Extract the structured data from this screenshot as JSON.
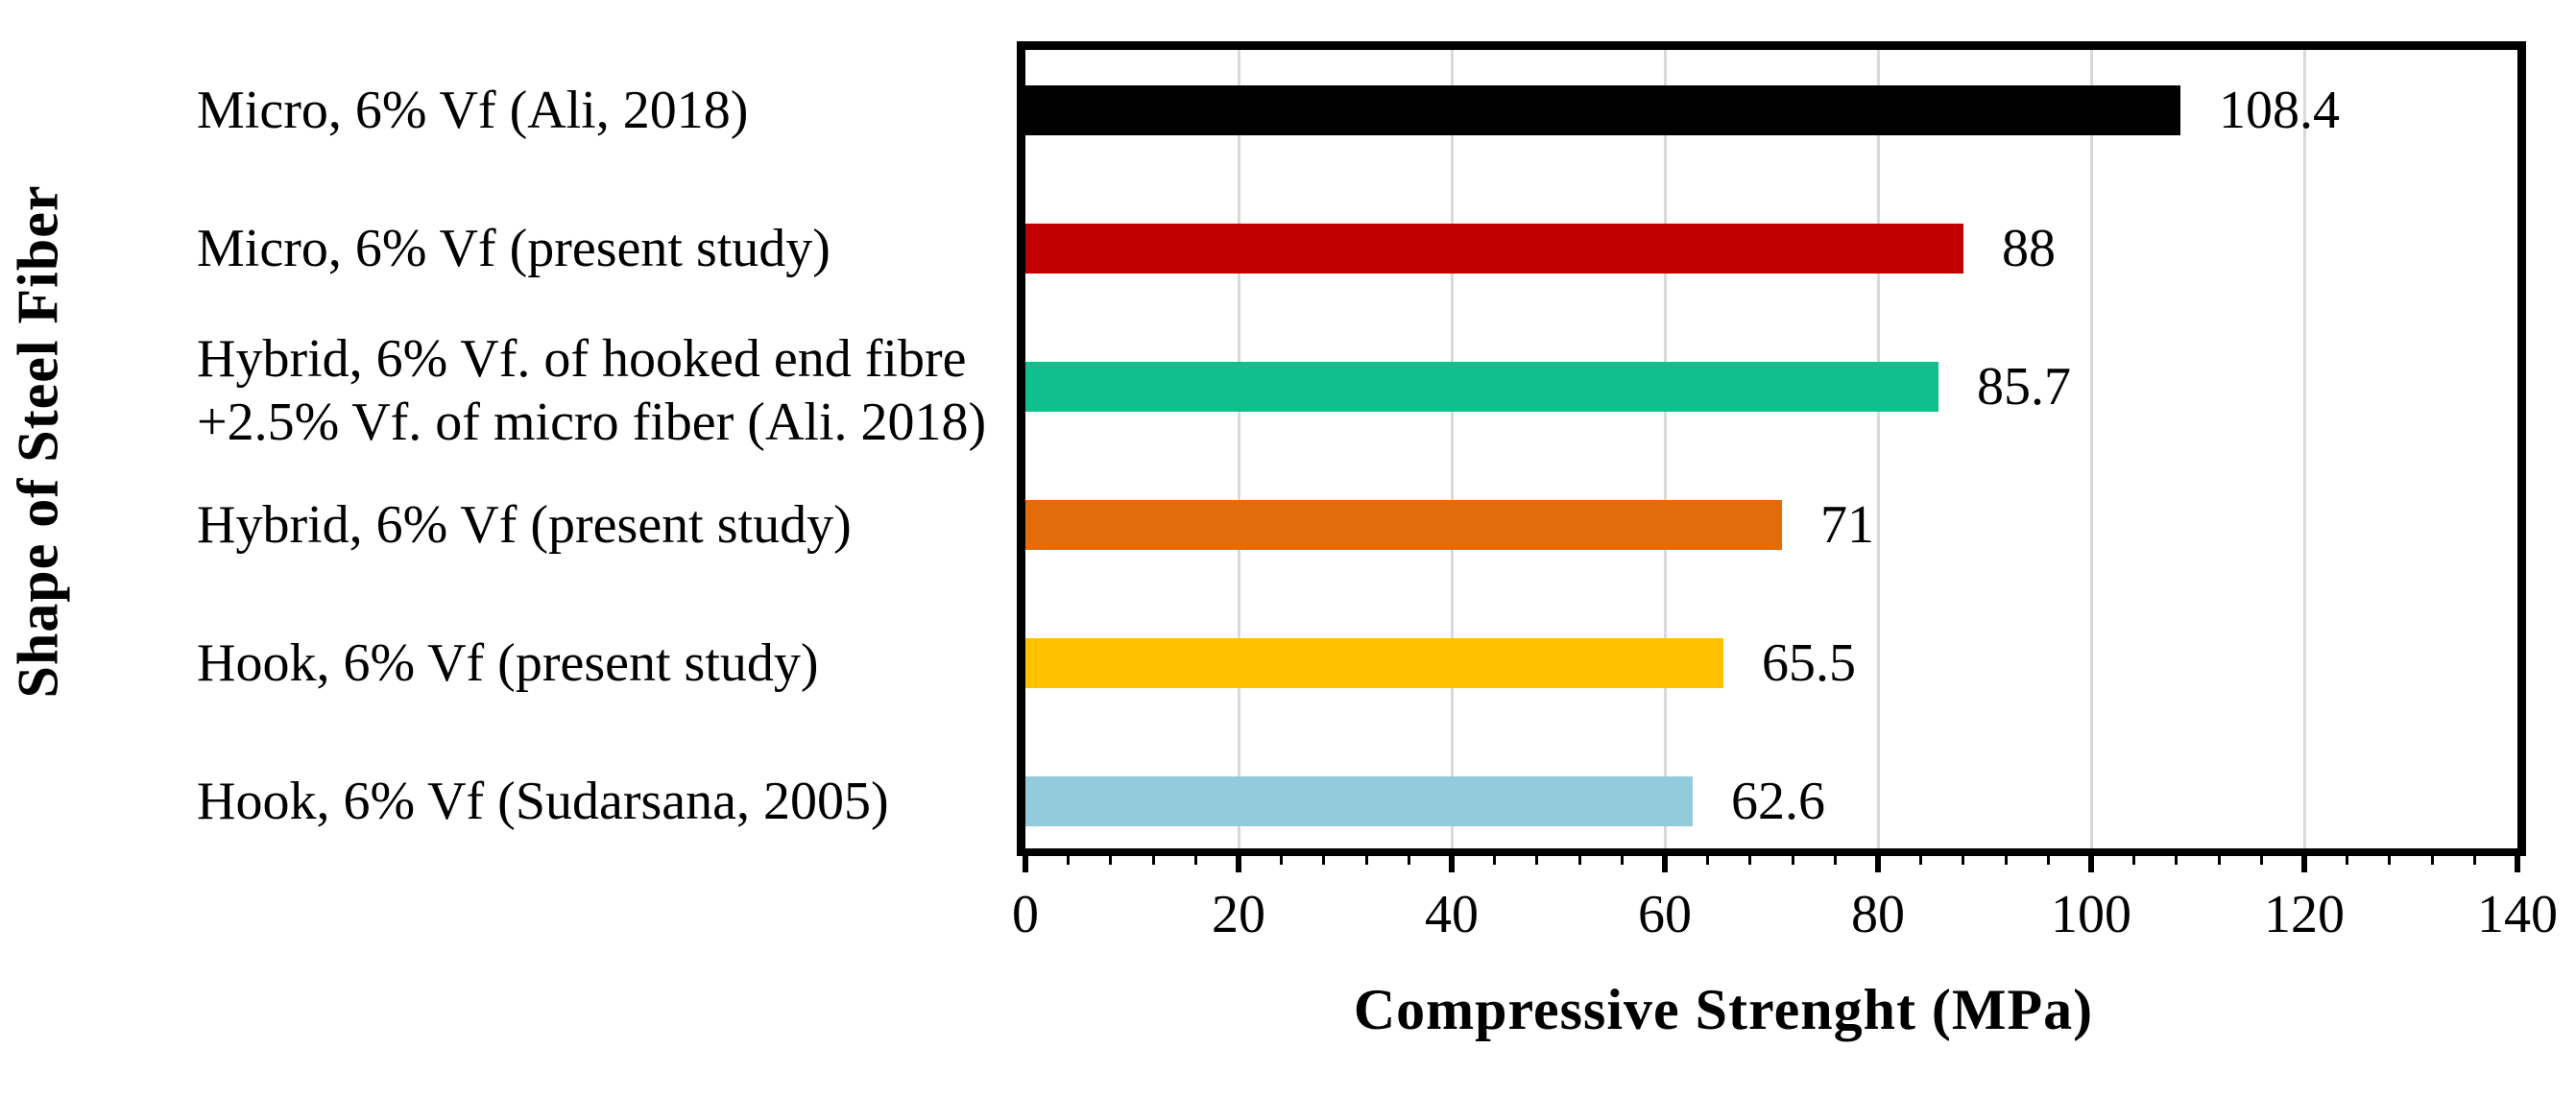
{
  "chart_data": {
    "type": "bar",
    "orientation": "horizontal",
    "title": "",
    "xlabel": "Compressive Strenght (MPa)",
    "ylabel": "Shape of Steel Fiber",
    "xlim": [
      0,
      140
    ],
    "x_tick_labels": [
      "0",
      "20",
      "40",
      "60",
      "80",
      "100",
      "120",
      "140"
    ],
    "x_major_tick_unit": 20,
    "x_minor_tick_unit": 4,
    "grid": "vertical-major",
    "gridline_color": "#D9D9D9",
    "axis_color": "#000000",
    "background_color": "#FFFFFF",
    "legend": "none",
    "categories": [
      "Micro, 6% Vf (Ali, 2018)",
      "Micro, 6% Vf (present study)",
      "Hybrid, 6% Vf. of hooked end fibre +2.5% Vf. of micro fiber (Ali. 2018)",
      "Hybrid, 6% Vf (present study)",
      "Hook, 6% Vf (present study)",
      "Hook, 6% Vf (Sudarsana, 2005)"
    ],
    "category_lines": [
      [
        "Micro, 6% Vf (Ali, 2018)"
      ],
      [
        "Micro, 6% Vf (present study)"
      ],
      [
        "Hybrid, 6% Vf. of hooked end fibre",
        "+2.5% Vf. of micro fiber (Ali. 2018)"
      ],
      [
        "Hybrid, 6% Vf (present study)"
      ],
      [
        "Hook, 6% Vf (present study)"
      ],
      [
        "Hook, 6% Vf (Sudarsana, 2005)"
      ]
    ],
    "values": [
      108.4,
      88,
      85.7,
      71,
      65.5,
      62.6
    ],
    "value_labels": [
      "108.4",
      "88",
      "85.7",
      "71",
      "65.5",
      "62.6"
    ],
    "bar_colors": [
      "#000000",
      "#C00000",
      "#10BE8E",
      "#E36C0A",
      "#FFC000",
      "#92CBDC"
    ]
  }
}
